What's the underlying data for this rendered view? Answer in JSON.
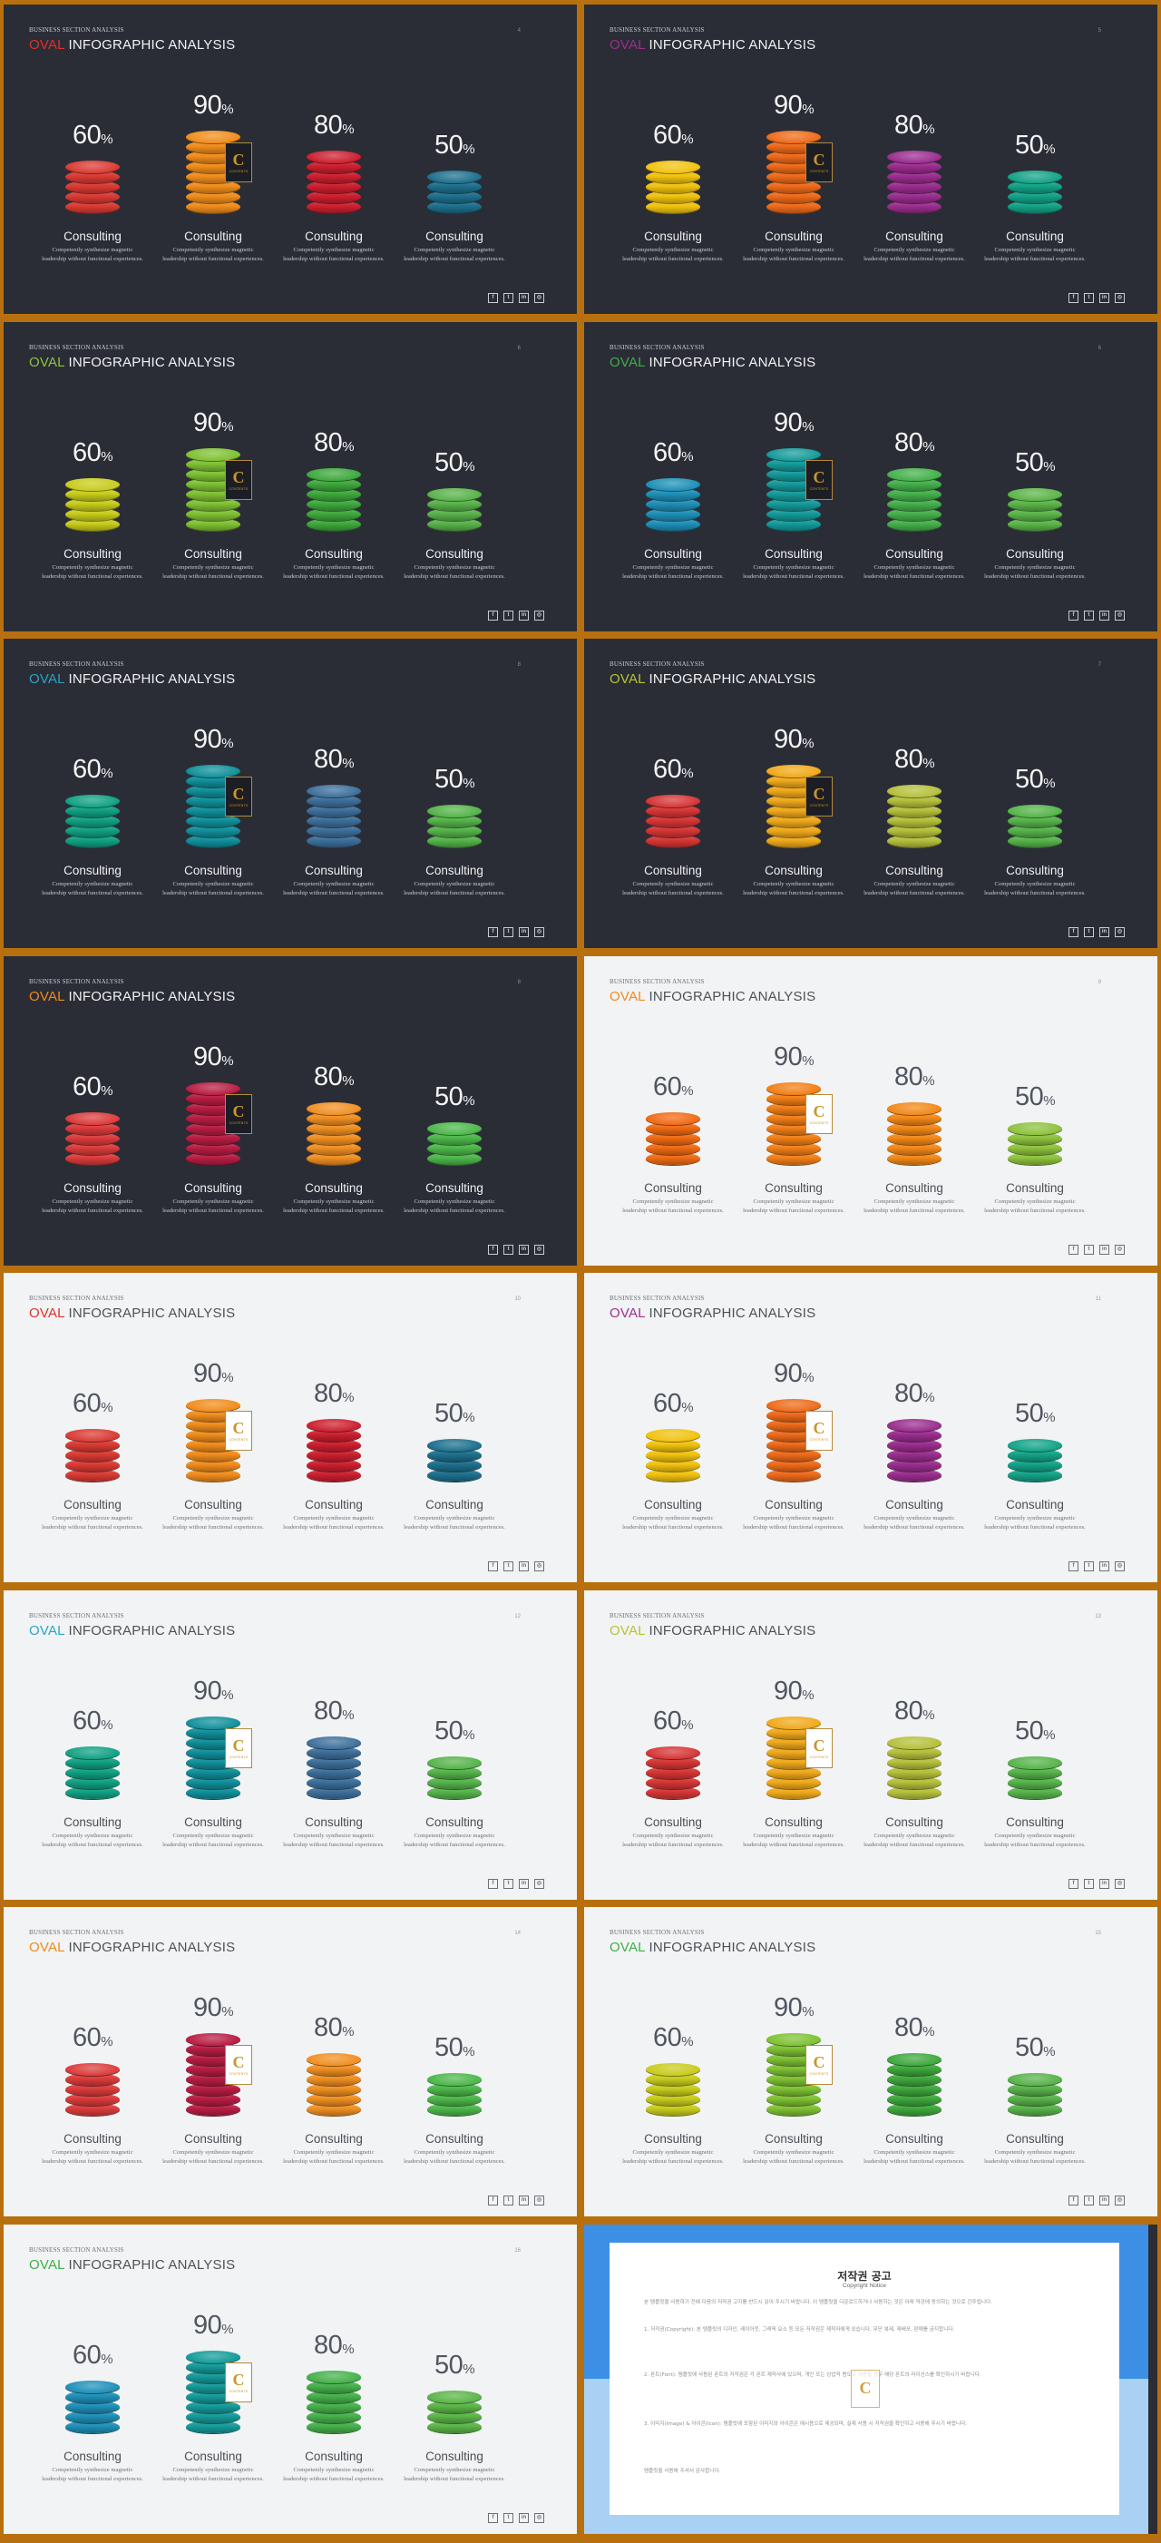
{
  "kicker": "BUSINESS SECTION ANALYSIS",
  "title_prefix": "OVAL",
  "title_rest": " INFOGRAPHIC ANALYSIS",
  "label": "Consulting",
  "desc_line1": "Competently synthesize magnetic",
  "desc_line2": "leadership without functional experiences.",
  "badge_letter": "C",
  "badge_text": "CONTENTS",
  "percent_sign": "%",
  "columns": [
    {
      "value": 60,
      "disks": 5
    },
    {
      "value": 90,
      "disks": 8
    },
    {
      "value": 80,
      "disks": 6
    },
    {
      "value": 50,
      "disks": 4
    }
  ],
  "social_icons": [
    {
      "name": "facebook-icon",
      "glyph": "f"
    },
    {
      "name": "twitter-icon",
      "glyph": "t"
    },
    {
      "name": "linkedin-icon",
      "glyph": "in"
    },
    {
      "name": "instagram-icon",
      "glyph": "◎"
    }
  ],
  "slides": [
    {
      "page": "4",
      "theme": "dark",
      "accent": "#e0302c",
      "colors": [
        "#d93a33",
        "#f08c1c",
        "#cc1f2e",
        "#1d6f8c"
      ]
    },
    {
      "page": "5",
      "theme": "dark",
      "accent": "#9b2f8f",
      "colors": [
        "#f1c20f",
        "#ee6a1a",
        "#9a2d8e",
        "#13a287"
      ]
    },
    {
      "page": "6",
      "theme": "dark",
      "accent": "#8dc63f",
      "colors": [
        "#c8cc1c",
        "#7fc133",
        "#3ea83c",
        "#58b24a"
      ]
    },
    {
      "page": "6",
      "theme": "dark",
      "accent": "#3fae49",
      "colors": [
        "#1f8fb7",
        "#159a9a",
        "#45b04b",
        "#5bb548"
      ]
    },
    {
      "page": "8",
      "theme": "dark",
      "accent": "#2aa4c8",
      "colors": [
        "#11a082",
        "#108f9a",
        "#3d6f9a",
        "#55b34a"
      ]
    },
    {
      "page": "7",
      "theme": "dark",
      "accent": "#b6c435",
      "colors": [
        "#d63535",
        "#f0a91c",
        "#b5c03c",
        "#56b34a"
      ]
    },
    {
      "page": "8",
      "theme": "dark",
      "accent": "#f28a1d",
      "colors": [
        "#db3b3b",
        "#b81d43",
        "#f08f22",
        "#4cb74a"
      ]
    },
    {
      "page": "9",
      "theme": "light",
      "accent": "#f28a1d",
      "colors": [
        "#f06a14",
        "#f27f17",
        "#f28818",
        "#8ec23d"
      ]
    },
    {
      "page": "10",
      "theme": "light",
      "accent": "#e0302c",
      "colors": [
        "#d93a33",
        "#f08c1c",
        "#cc1f2e",
        "#1d6f8c"
      ]
    },
    {
      "page": "11",
      "theme": "light",
      "accent": "#9b2f8f",
      "colors": [
        "#f1c20f",
        "#ee6a1a",
        "#9a2d8e",
        "#13a287"
      ]
    },
    {
      "page": "12",
      "theme": "light",
      "accent": "#2aa4c8",
      "colors": [
        "#11a082",
        "#108f9a",
        "#3d6f9a",
        "#55b34a"
      ]
    },
    {
      "page": "13",
      "theme": "light",
      "accent": "#b6c435",
      "colors": [
        "#d63535",
        "#f0a91c",
        "#b5c03c",
        "#56b34a"
      ]
    },
    {
      "page": "14",
      "theme": "light",
      "accent": "#f28a1d",
      "colors": [
        "#db3b3b",
        "#b81d43",
        "#f08f22",
        "#4cb74a"
      ]
    },
    {
      "page": "15",
      "theme": "light",
      "accent": "#3fae49",
      "colors": [
        "#c8cc1c",
        "#7fc133",
        "#3ea83c",
        "#58b24a"
      ]
    },
    {
      "page": "16",
      "theme": "light",
      "accent": "#3fae49",
      "colors": [
        "#1f8fb7",
        "#159a9a",
        "#45b04b",
        "#5bb548"
      ]
    }
  ],
  "notice": {
    "title": "저작권 공고",
    "subtitle": "Copyright Notice",
    "paragraphs": [
      "본 템플릿을 사용하기 전에 다음의 저작권 고지를 반드시 읽어 주시기 바랍니다. 이 템플릿을 다운로드하거나 사용하는 것은 아래 약관에 동의하는 것으로 간주됩니다.",
      "1. 저작권(Copyright): 본 템플릿의 디자인, 레이아웃, 그래픽 요소 등 모든 저작권은 제작자에게 있습니다. 무단 복제, 재배포, 판매를 금지합니다.",
      "2. 폰트(Font): 템플릿에 사용된 폰트의 저작권은 각 폰트 제작사에 있으며, 개인 또는 상업적 용도로 사용할 경우 해당 폰트의 라이선스를 확인하시기 바랍니다.",
      "3. 이미지(Image) & 아이콘(Icon): 템플릿에 포함된 이미지와 아이콘은 예시용으로 제공되며, 실제 사용 시 저작권을 확인하고 사용해 주시기 바랍니다.",
      "템플릿을 사용해 주셔서 감사합니다."
    ]
  }
}
